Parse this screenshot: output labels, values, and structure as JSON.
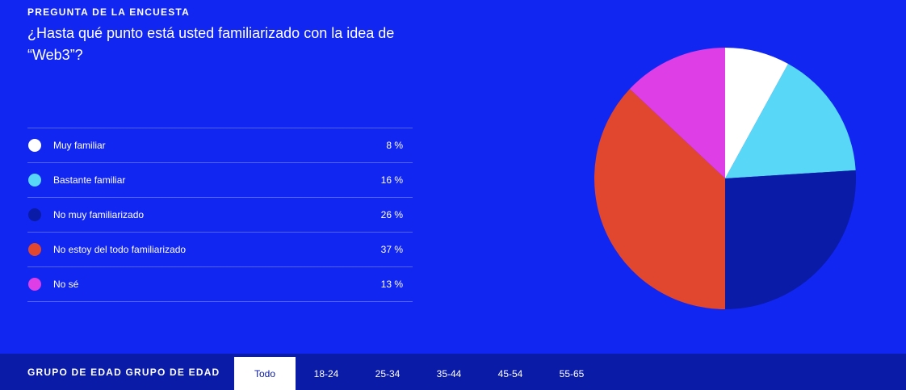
{
  "header": {
    "eyebrow": "PREGUNTA DE LA ENCUESTA",
    "question": "¿Hasta qué punto está usted familiarizado con la idea de “Web3”?"
  },
  "legend": [
    {
      "label": "Muy familiar",
      "value": "8 %",
      "color": "#ffffff"
    },
    {
      "label": "Bastante familiar",
      "value": "16 %",
      "color": "#58d8f6"
    },
    {
      "label": "No muy familiarizado",
      "value": "26 %",
      "color": "#0a1ba8"
    },
    {
      "label": "No estoy del todo familiarizado",
      "value": "37 %",
      "color": "#e0472e"
    },
    {
      "label": "No sé",
      "value": "13 %",
      "color": "#dd3ee6"
    }
  ],
  "chart_data": {
    "type": "pie",
    "title": "¿Hasta qué punto está usted familiarizado con la idea de “Web3”?",
    "categories": [
      "Muy familiar",
      "Bastante familiar",
      "No muy familiarizado",
      "No estoy del todo familiarizado",
      "No sé"
    ],
    "values": [
      8,
      16,
      26,
      37,
      13
    ],
    "unit": "%",
    "colors": [
      "#ffffff",
      "#58d8f6",
      "#0a1ba8",
      "#e0472e",
      "#dd3ee6"
    ],
    "legend": "left"
  },
  "filter_bar": {
    "label": "GRUPO DE EDAD GRUPO DE EDAD",
    "tabs": [
      "Todo",
      "18-24",
      "25-34",
      "35-44",
      "45-54",
      "55-65"
    ],
    "active_tab": "Todo"
  },
  "colors": {
    "background": "#1226f2",
    "tabbar_background": "#0a1ba8",
    "text": "#ffffff"
  }
}
